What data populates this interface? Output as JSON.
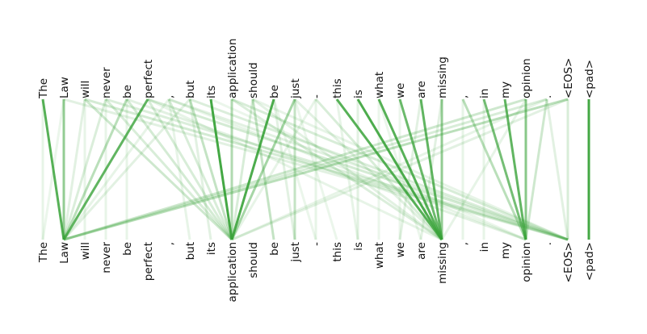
{
  "diagram": {
    "type": "attention-map",
    "line_color": "#3aa33a",
    "top_tokens": [
      "The",
      "Law",
      "will",
      "never",
      "be",
      "perfect",
      ",",
      "but",
      "its",
      "application",
      "should",
      "be",
      "just",
      "-",
      "this",
      "is",
      "what",
      "we",
      "are",
      "missing",
      ",",
      "in",
      "my",
      "opinion",
      ".",
      "<EOS>",
      "<pad>"
    ],
    "bottom_tokens": [
      "The",
      "Law",
      "will",
      "never",
      "be",
      "perfect",
      ",",
      "but",
      "its",
      "application",
      "should",
      "be",
      "just",
      "-",
      "this",
      "is",
      "what",
      "we",
      "are",
      "missing",
      ",",
      "in",
      "my",
      "opinion",
      ".",
      "<EOS>",
      "<pad>"
    ],
    "edges": [
      [
        0,
        1,
        0.85
      ],
      [
        1,
        1,
        0.55
      ],
      [
        2,
        1,
        0.15
      ],
      [
        3,
        1,
        0.18
      ],
      [
        4,
        1,
        0.35
      ],
      [
        5,
        1,
        0.8
      ],
      [
        6,
        1,
        0.12
      ],
      [
        7,
        1,
        0.15
      ],
      [
        8,
        9,
        0.95
      ],
      [
        9,
        9,
        0.4
      ],
      [
        10,
        9,
        0.2
      ],
      [
        11,
        9,
        0.9
      ],
      [
        12,
        9,
        0.45
      ],
      [
        13,
        9,
        0.12
      ],
      [
        10,
        11,
        0.3
      ],
      [
        11,
        12,
        0.15
      ],
      [
        12,
        12,
        0.3
      ],
      [
        14,
        19,
        0.85
      ],
      [
        15,
        19,
        0.9
      ],
      [
        16,
        19,
        0.85
      ],
      [
        17,
        19,
        0.75
      ],
      [
        18,
        19,
        0.8
      ],
      [
        19,
        19,
        0.55
      ],
      [
        13,
        19,
        0.2
      ],
      [
        12,
        19,
        0.15
      ],
      [
        21,
        23,
        0.7
      ],
      [
        22,
        23,
        0.8
      ],
      [
        23,
        23,
        0.6
      ],
      [
        20,
        23,
        0.35
      ],
      [
        24,
        23,
        0.25
      ],
      [
        25,
        1,
        0.35
      ],
      [
        24,
        1,
        0.2
      ],
      [
        23,
        1,
        0.25
      ],
      [
        25,
        9,
        0.15
      ],
      [
        24,
        9,
        0.12
      ],
      [
        23,
        19,
        0.12
      ],
      [
        2,
        25,
        0.22
      ],
      [
        3,
        25,
        0.18
      ],
      [
        5,
        25,
        0.22
      ],
      [
        6,
        25,
        0.15
      ],
      [
        7,
        25,
        0.18
      ],
      [
        9,
        25,
        0.2
      ],
      [
        10,
        25,
        0.12
      ],
      [
        1,
        25,
        0.15
      ],
      [
        4,
        23,
        0.15
      ],
      [
        6,
        23,
        0.12
      ],
      [
        8,
        23,
        0.1
      ],
      [
        9,
        19,
        0.18
      ],
      [
        10,
        19,
        0.15
      ],
      [
        5,
        19,
        0.12
      ],
      [
        2,
        9,
        0.25
      ],
      [
        3,
        9,
        0.2
      ],
      [
        4,
        9,
        0.22
      ],
      [
        6,
        9,
        0.2
      ],
      [
        7,
        9,
        0.3
      ],
      [
        5,
        9,
        0.2
      ],
      [
        3,
        3,
        0.12
      ],
      [
        2,
        2,
        0.12
      ],
      [
        4,
        4,
        0.12
      ],
      [
        6,
        7,
        0.12
      ],
      [
        7,
        8,
        0.15
      ],
      [
        13,
        13,
        0.12
      ],
      [
        15,
        15,
        0.15
      ],
      [
        16,
        16,
        0.1
      ],
      [
        17,
        17,
        0.1
      ],
      [
        18,
        17,
        0.15
      ],
      [
        19,
        18,
        0.15
      ],
      [
        20,
        20,
        0.12
      ],
      [
        24,
        25,
        0.15
      ],
      [
        25,
        25,
        0.2
      ],
      [
        21,
        21,
        0.12
      ],
      [
        14,
        15,
        0.12
      ],
      [
        16,
        18,
        0.1
      ],
      [
        12,
        14,
        0.1
      ],
      [
        11,
        13,
        0.1
      ],
      [
        0,
        0,
        0.12
      ],
      [
        1,
        0,
        0.1
      ],
      [
        26,
        26,
        0.95
      ]
    ]
  }
}
